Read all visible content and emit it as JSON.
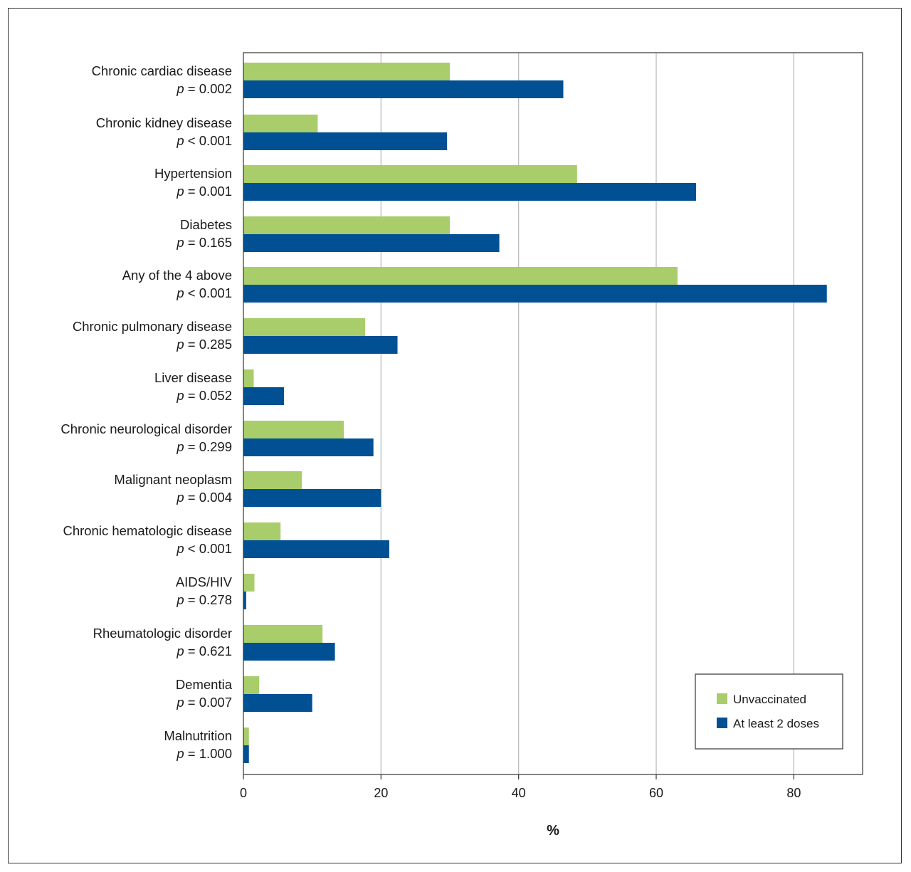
{
  "chart_data": {
    "type": "bar",
    "orientation": "horizontal",
    "categories": [
      "Chronic cardiac disease",
      "Chronic kidney disease",
      "Hypertension",
      "Diabetes",
      "Any of the 4 above",
      "Chronic pulmonary disease",
      "Liver disease",
      "Chronic neurological disorder",
      "Malignant neoplasm",
      "Chronic hematologic disease",
      "AIDS/HIV",
      "Rheumatologic disorder",
      "Dementia",
      "Malnutrition"
    ],
    "p_values": [
      "0.002",
      "< 0.001",
      "0.001",
      "0.165",
      "< 0.001",
      "0.285",
      "0.052",
      "0.299",
      "0.004",
      "< 0.001",
      "0.278",
      "0.621",
      "0.007",
      "1.000"
    ],
    "p_operators": [
      "=",
      "<",
      "=",
      "=",
      "<",
      "=",
      "=",
      "=",
      "=",
      "<",
      "=",
      "=",
      "=",
      "="
    ],
    "p_numbers": [
      "0.002",
      "0.001",
      "0.001",
      "0.165",
      "0.001",
      "0.285",
      "0.052",
      "0.299",
      "0.004",
      "0.001",
      "0.278",
      "0.621",
      "0.007",
      "1.000"
    ],
    "p_symbol": "p",
    "series": [
      {
        "name": "Unvaccinated",
        "color": "#a8cd6a",
        "values": [
          30,
          10.8,
          48.5,
          30,
          63.1,
          17.7,
          1.5,
          14.6,
          8.5,
          5.4,
          1.6,
          11.5,
          2.3,
          0.8
        ]
      },
      {
        "name": "At least 2 doses",
        "color": "#005093",
        "values": [
          46.5,
          29.6,
          65.8,
          37.2,
          84.8,
          22.4,
          5.9,
          18.9,
          20,
          21.2,
          0.4,
          13.3,
          10,
          0.8
        ]
      }
    ],
    "xlabel": "%",
    "xlim": [
      0,
      90
    ],
    "xticks": [
      0,
      20,
      40,
      60,
      80
    ],
    "grid": "vertical",
    "legend_position": "bottom-right"
  }
}
